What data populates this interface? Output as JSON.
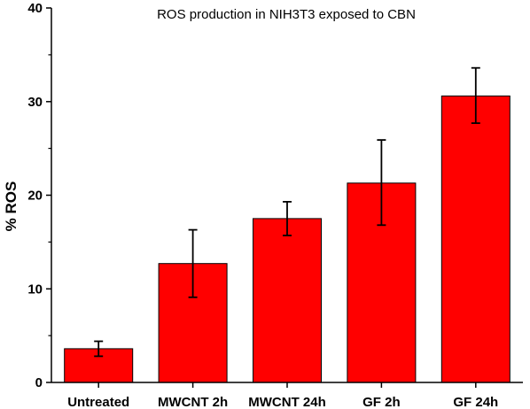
{
  "chart_data": {
    "type": "bar",
    "title": "ROS production in NIH3T3 exposed to CBN",
    "xlabel": "",
    "ylabel": "% ROS",
    "categories": [
      "Untreated",
      "MWCNT 2h",
      "MWCNT 24h",
      "GF 2h",
      "GF 24h"
    ],
    "values": [
      3.6,
      12.7,
      17.5,
      21.3,
      30.6
    ],
    "error_lower": [
      2.8,
      9.1,
      15.7,
      16.8,
      27.7
    ],
    "error_upper": [
      4.4,
      16.3,
      19.3,
      25.9,
      33.6
    ],
    "ylim": [
      0,
      40
    ],
    "yticks": [
      0,
      10,
      20,
      30,
      40
    ],
    "bar_color": "#ff0000",
    "grid": false
  }
}
